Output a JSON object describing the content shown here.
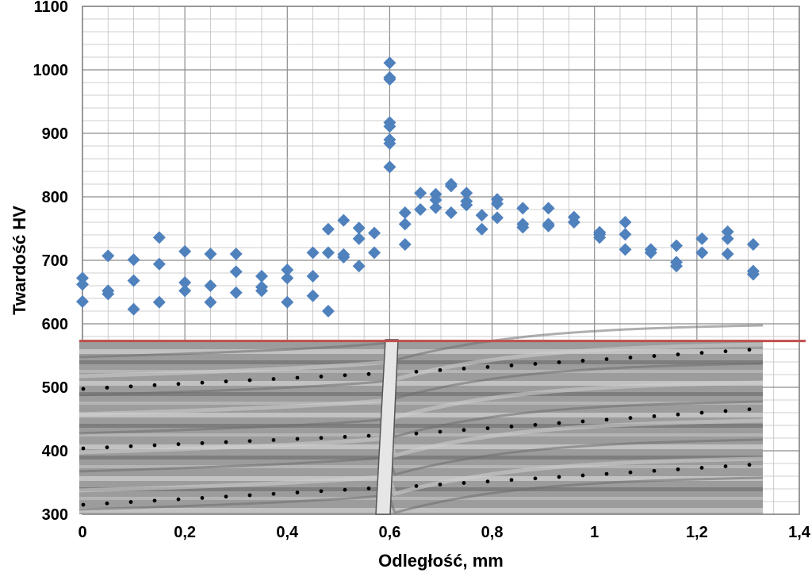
{
  "chart_data": {
    "type": "scatter",
    "title": "",
    "xlabel": "Odległość, mm",
    "ylabel": "Twardość HV",
    "xlim": [
      0,
      1.4
    ],
    "ylim": [
      300,
      1100
    ],
    "x_ticks": [
      "0",
      "0,2",
      "0,4",
      "0,6",
      "0,8",
      "1",
      "1,2",
      "1,4"
    ],
    "y_ticks": [
      "300",
      "400",
      "500",
      "600",
      "700",
      "800",
      "900",
      "1000",
      "1100"
    ],
    "grid": true,
    "legend": "none",
    "marker_color": "#4F81BD",
    "reference_line": {
      "y": 573,
      "color": "#C0504D"
    },
    "inset": "micrograph with indentation rows (grayscale)",
    "series": [
      {
        "points": [
          [
            0,
            672
          ],
          [
            0,
            662
          ],
          [
            0,
            635
          ],
          [
            0.05,
            707
          ],
          [
            0.05,
            652
          ],
          [
            0.05,
            647
          ],
          [
            0.1,
            701
          ],
          [
            0.1,
            668
          ],
          [
            0.1,
            623
          ],
          [
            0.15,
            736
          ],
          [
            0.15,
            694
          ],
          [
            0.15,
            634
          ],
          [
            0.2,
            714
          ],
          [
            0.2,
            665
          ],
          [
            0.2,
            652
          ],
          [
            0.25,
            710
          ],
          [
            0.25,
            660
          ],
          [
            0.25,
            634
          ],
          [
            0.3,
            710
          ],
          [
            0.3,
            682
          ],
          [
            0.3,
            649
          ],
          [
            0.35,
            675
          ],
          [
            0.35,
            658
          ],
          [
            0.35,
            652
          ],
          [
            0.4,
            685
          ],
          [
            0.4,
            672
          ],
          [
            0.4,
            634
          ],
          [
            0.45,
            712
          ],
          [
            0.45,
            675
          ],
          [
            0.45,
            644
          ],
          [
            0.48,
            749
          ],
          [
            0.48,
            712
          ],
          [
            0.48,
            620
          ],
          [
            0.51,
            763
          ],
          [
            0.51,
            709
          ],
          [
            0.51,
            705
          ],
          [
            0.54,
            751
          ],
          [
            0.54,
            734
          ],
          [
            0.54,
            691
          ],
          [
            0.57,
            743
          ],
          [
            0.57,
            712
          ],
          [
            0.6,
            1011
          ],
          [
            0.6,
            988
          ],
          [
            0.6,
            985
          ],
          [
            0.6,
            917
          ],
          [
            0.6,
            911
          ],
          [
            0.6,
            890
          ],
          [
            0.6,
            884
          ],
          [
            0.6,
            847
          ],
          [
            0.63,
            775
          ],
          [
            0.63,
            757
          ],
          [
            0.63,
            725
          ],
          [
            0.66,
            806
          ],
          [
            0.66,
            780
          ],
          [
            0.69,
            804
          ],
          [
            0.69,
            795
          ],
          [
            0.69,
            783
          ],
          [
            0.72,
            820
          ],
          [
            0.72,
            817
          ],
          [
            0.72,
            775
          ],
          [
            0.75,
            806
          ],
          [
            0.75,
            793
          ],
          [
            0.75,
            787
          ],
          [
            0.78,
            771
          ],
          [
            0.78,
            749
          ],
          [
            0.81,
            796
          ],
          [
            0.81,
            789
          ],
          [
            0.81,
            767
          ],
          [
            0.86,
            782
          ],
          [
            0.86,
            757
          ],
          [
            0.86,
            752
          ],
          [
            0.91,
            782
          ],
          [
            0.91,
            757
          ],
          [
            0.91,
            754
          ],
          [
            0.96,
            768
          ],
          [
            0.96,
            760
          ],
          [
            1.01,
            744
          ],
          [
            1.01,
            741
          ],
          [
            1.01,
            736
          ],
          [
            1.06,
            760
          ],
          [
            1.06,
            741
          ],
          [
            1.06,
            717
          ],
          [
            1.11,
            717
          ],
          [
            1.11,
            712
          ],
          [
            1.16,
            723
          ],
          [
            1.16,
            697
          ],
          [
            1.16,
            691
          ],
          [
            1.21,
            734
          ],
          [
            1.21,
            712
          ],
          [
            1.26,
            745
          ],
          [
            1.26,
            734
          ],
          [
            1.26,
            710
          ],
          [
            1.31,
            725
          ],
          [
            1.31,
            683
          ],
          [
            1.31,
            678
          ]
        ]
      }
    ]
  }
}
